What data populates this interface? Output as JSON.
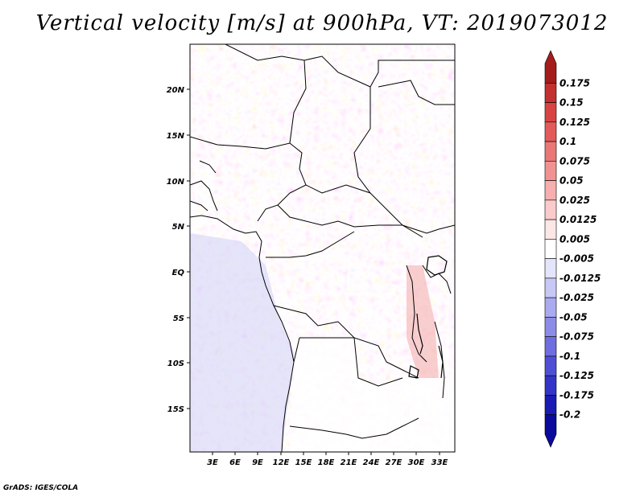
{
  "title": "Vertical velocity [m/s] at 900hPa, VT: 2019073012",
  "footer": "GrADS: IGES/COLA",
  "map": {
    "lat_labels": [
      "20N",
      "15N",
      "10N",
      "5N",
      "EQ",
      "5S",
      "10S",
      "15S"
    ],
    "lon_labels": [
      "3E",
      "6E",
      "9E",
      "12E",
      "15E",
      "18E",
      "21E",
      "24E",
      "27E",
      "30E",
      "33E"
    ]
  },
  "colorbar": {
    "levels": [
      "0.175",
      "0.15",
      "0.125",
      "0.1",
      "0.075",
      "0.05",
      "0.025",
      "0.0125",
      "0.005",
      "-0.005",
      "-0.0125",
      "-0.025",
      "-0.05",
      "-0.075",
      "-0.1",
      "-0.125",
      "-0.175",
      "-0.2"
    ],
    "colors": [
      "#a51c1c",
      "#c42f2f",
      "#d84444",
      "#e35a5a",
      "#eb7676",
      "#f19292",
      "#f6aeae",
      "#fbcaca",
      "#fde6e6",
      "#ffffff",
      "#e4e4fb",
      "#c8c8f6",
      "#aaaaf0",
      "#8c8ce8",
      "#6e6ee0",
      "#4f4fd6",
      "#3434c8",
      "#1a1ab4",
      "#0a0a9c"
    ]
  }
}
